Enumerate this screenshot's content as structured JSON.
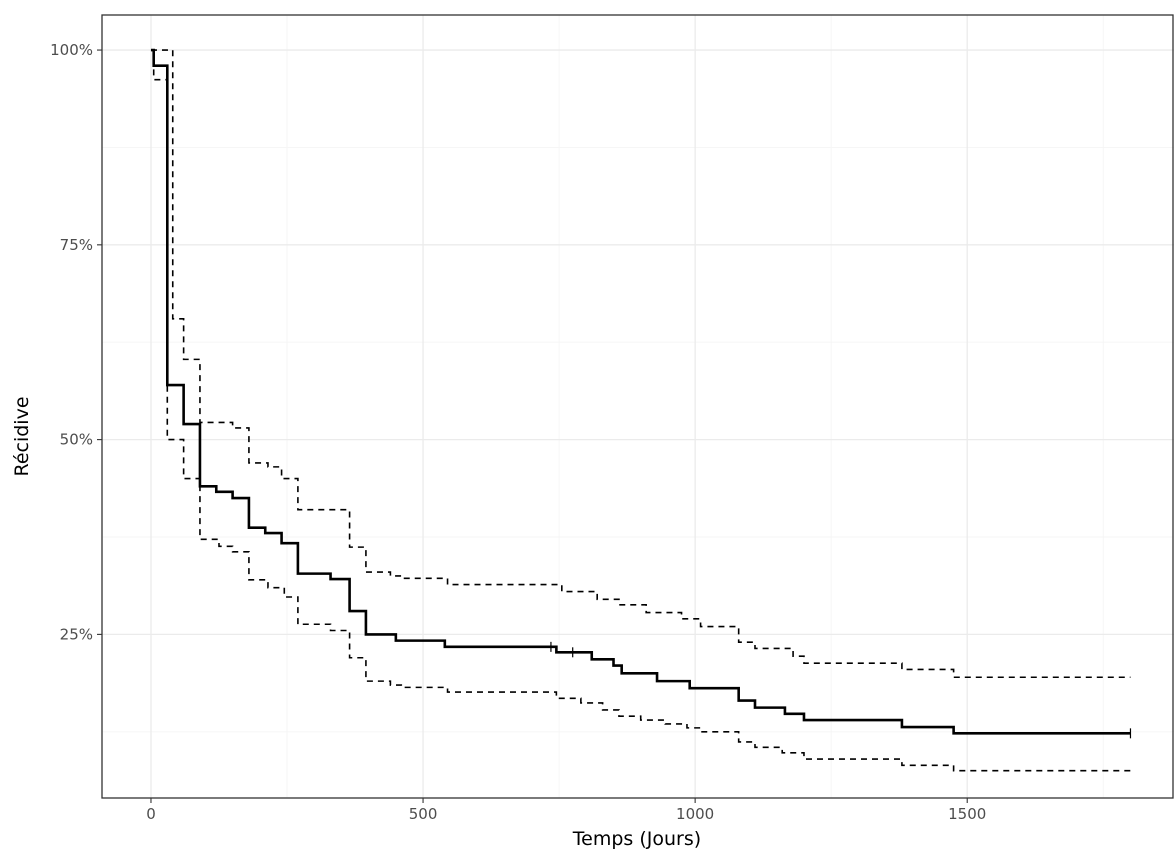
{
  "chart_data": {
    "type": "line",
    "subtype": "kaplan-meier step",
    "title": "",
    "xlabel": "Temps (Jours)",
    "ylabel": "Récidive",
    "xlim": [
      -90,
      1880
    ],
    "ylim": [
      0.04,
      1.045
    ],
    "x_ticks": [
      0,
      500,
      1000,
      1500
    ],
    "x_tick_labels": [
      "0",
      "500",
      "1000",
      "1500"
    ],
    "y_ticks": [
      0.25,
      0.5,
      0.75,
      1.0
    ],
    "y_tick_labels": [
      "25%",
      "50%",
      "75%",
      "100%"
    ],
    "grid": true,
    "colors": {
      "line": "#000000",
      "grid": "#ebebeb",
      "border": "#333333"
    },
    "series": [
      {
        "role": "estimate",
        "style": "solid",
        "points": [
          [
            0,
            1.0
          ],
          [
            5,
            0.98
          ],
          [
            30,
            0.57
          ],
          [
            60,
            0.52
          ],
          [
            90,
            0.44
          ],
          [
            120,
            0.433
          ],
          [
            150,
            0.425
          ],
          [
            180,
            0.387
          ],
          [
            210,
            0.38
          ],
          [
            240,
            0.367
          ],
          [
            270,
            0.328
          ],
          [
            330,
            0.321
          ],
          [
            365,
            0.28
          ],
          [
            395,
            0.25
          ],
          [
            450,
            0.242
          ],
          [
            540,
            0.234
          ],
          [
            745,
            0.227
          ],
          [
            785,
            0.227
          ],
          [
            810,
            0.218
          ],
          [
            850,
            0.21
          ],
          [
            865,
            0.2
          ],
          [
            930,
            0.19
          ],
          [
            990,
            0.181
          ],
          [
            1080,
            0.165
          ],
          [
            1110,
            0.156
          ],
          [
            1165,
            0.148
          ],
          [
            1200,
            0.14
          ],
          [
            1380,
            0.131
          ],
          [
            1475,
            0.123
          ],
          [
            1800,
            0.123
          ]
        ],
        "censor_marks": [
          [
            735,
            0.234
          ],
          [
            775,
            0.227
          ],
          [
            1800,
            0.123
          ]
        ]
      },
      {
        "role": "upper confidence bound",
        "style": "dashed",
        "points": [
          [
            0,
            1.0
          ],
          [
            15,
            1.0
          ],
          [
            30,
            1.0
          ],
          [
            40,
            0.655
          ],
          [
            60,
            0.603
          ],
          [
            90,
            0.522
          ],
          [
            150,
            0.515
          ],
          [
            180,
            0.508
          ],
          [
            180,
            0.47
          ],
          [
            215,
            0.465
          ],
          [
            240,
            0.45
          ],
          [
            270,
            0.41
          ],
          [
            325,
            0.41
          ],
          [
            365,
            0.362
          ],
          [
            395,
            0.33
          ],
          [
            440,
            0.325
          ],
          [
            460,
            0.322
          ],
          [
            545,
            0.314
          ],
          [
            740,
            0.314
          ],
          [
            755,
            0.305
          ],
          [
            820,
            0.295
          ],
          [
            860,
            0.288
          ],
          [
            910,
            0.278
          ],
          [
            975,
            0.27
          ],
          [
            1010,
            0.26
          ],
          [
            1080,
            0.24
          ],
          [
            1110,
            0.232
          ],
          [
            1180,
            0.222
          ],
          [
            1200,
            0.213
          ],
          [
            1380,
            0.205
          ],
          [
            1475,
            0.195
          ],
          [
            1800,
            0.195
          ]
        ]
      },
      {
        "role": "lower confidence bound",
        "style": "dashed",
        "points": [
          [
            0,
            1.0
          ],
          [
            5,
            0.962
          ],
          [
            30,
            0.5
          ],
          [
            60,
            0.45
          ],
          [
            90,
            0.372
          ],
          [
            125,
            0.363
          ],
          [
            150,
            0.356
          ],
          [
            180,
            0.32
          ],
          [
            215,
            0.31
          ],
          [
            245,
            0.298
          ],
          [
            270,
            0.263
          ],
          [
            330,
            0.255
          ],
          [
            365,
            0.22
          ],
          [
            395,
            0.19
          ],
          [
            440,
            0.185
          ],
          [
            460,
            0.182
          ],
          [
            545,
            0.176
          ],
          [
            745,
            0.168
          ],
          [
            790,
            0.162
          ],
          [
            830,
            0.153
          ],
          [
            860,
            0.145
          ],
          [
            900,
            0.14
          ],
          [
            945,
            0.135
          ],
          [
            985,
            0.13
          ],
          [
            1010,
            0.125
          ],
          [
            1080,
            0.112
          ],
          [
            1110,
            0.105
          ],
          [
            1160,
            0.098
          ],
          [
            1200,
            0.09
          ],
          [
            1380,
            0.082
          ],
          [
            1475,
            0.075
          ],
          [
            1800,
            0.075
          ]
        ]
      }
    ]
  }
}
